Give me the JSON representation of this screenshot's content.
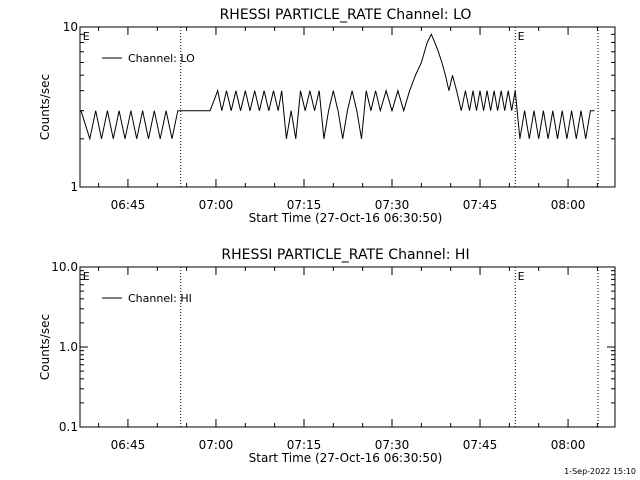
{
  "chart_data": [
    {
      "type": "line",
      "title": "RHESSI PARTICLE_RATE Channel: LO",
      "xlabel": "Start Time (27-Oct-16 06:30:50)",
      "ylabel": "Counts/sec",
      "y_scale": "log",
      "ylim": [
        1,
        10
      ],
      "y_ticks": [
        {
          "value": 1,
          "label": "1"
        },
        {
          "value": 10,
          "label": "10"
        }
      ],
      "x_unit": "minutes of day",
      "xlim": [
        396.83,
        488.0
      ],
      "x_ticks": [
        {
          "value": 405,
          "label": "06:45"
        },
        {
          "value": 420,
          "label": "07:00"
        },
        {
          "value": 435,
          "label": "07:15"
        },
        {
          "value": 450,
          "label": "07:30"
        },
        {
          "value": 465,
          "label": "07:45"
        },
        {
          "value": 480,
          "label": "08:00"
        }
      ],
      "event_lines": [
        414.0,
        471.0,
        485.1
      ],
      "event_markers": [
        {
          "x": 397.3,
          "label": "E"
        },
        {
          "x": 471.4,
          "label": "E"
        }
      ],
      "legend": {
        "position": "top-left"
      },
      "series": [
        {
          "name": "Channel: LO",
          "x": [
            397.0,
            398.5,
            399.5,
            400.5,
            401.5,
            402.5,
            403.5,
            404.5,
            405.5,
            406.5,
            407.5,
            408.5,
            409.5,
            410.5,
            411.5,
            412.5,
            413.5,
            414.2,
            417.0,
            419.0,
            420.3,
            421.0,
            421.8,
            422.6,
            423.4,
            424.2,
            425.0,
            425.8,
            426.6,
            427.4,
            428.2,
            429.0,
            429.8,
            430.6,
            431.2,
            432.0,
            432.8,
            433.6,
            434.4,
            435.2,
            436.0,
            436.8,
            437.6,
            438.4,
            439.2,
            440.0,
            440.8,
            441.6,
            442.4,
            443.2,
            444.0,
            444.8,
            445.6,
            446.4,
            447.2,
            448.0,
            449.0,
            450.0,
            451.0,
            452.0,
            453.0,
            454.0,
            455.0,
            456.0,
            456.7,
            457.3,
            457.9,
            458.5,
            459.1,
            459.7,
            460.3,
            461.0,
            461.8,
            462.5,
            463.2,
            463.8,
            464.4,
            465.0,
            465.6,
            466.2,
            466.8,
            467.4,
            468.0,
            468.6,
            469.2,
            469.8,
            470.4,
            471.0,
            471.8,
            472.6,
            473.4,
            474.2,
            475.0,
            475.8,
            476.6,
            477.4,
            478.2,
            479.0,
            479.8,
            480.6,
            481.4,
            482.2,
            483.0,
            483.8,
            484.5
          ],
          "y": [
            3,
            2,
            3,
            2,
            3,
            2,
            3,
            2,
            3,
            2,
            3,
            2,
            3,
            2,
            3,
            2,
            3,
            3,
            3,
            3,
            4,
            3,
            4,
            3,
            4,
            3,
            4,
            3,
            4,
            3,
            4,
            3,
            4,
            3,
            4,
            2,
            3,
            2,
            4,
            3,
            4,
            3,
            4,
            2,
            3,
            4,
            3,
            2,
            3,
            4,
            3,
            2,
            4,
            3,
            4,
            3,
            4,
            3,
            4,
            3,
            4,
            5,
            6,
            8,
            9,
            8,
            7,
            6,
            5,
            4,
            5,
            4,
            3,
            4,
            3,
            4,
            3,
            4,
            3,
            4,
            3,
            4,
            3,
            4,
            3,
            4,
            3,
            4,
            2,
            3,
            2,
            3,
            2,
            3,
            2,
            3,
            2,
            3,
            2,
            3,
            2,
            3,
            2,
            3,
            3
          ]
        }
      ]
    },
    {
      "type": "line",
      "title": "RHESSI PARTICLE_RATE Channel: HI",
      "xlabel": "Start Time (27-Oct-16 06:30:50)",
      "ylabel": "Counts/sec",
      "y_scale": "log",
      "ylim": [
        0.1,
        10
      ],
      "y_ticks": [
        {
          "value": 0.1,
          "label": "0.1"
        },
        {
          "value": 1,
          "label": "1.0"
        },
        {
          "value": 10,
          "label": "10.0"
        }
      ],
      "x_unit": "minutes of day",
      "xlim": [
        396.83,
        488.0
      ],
      "x_ticks": [
        {
          "value": 405,
          "label": "06:45"
        },
        {
          "value": 420,
          "label": "07:00"
        },
        {
          "value": 435,
          "label": "07:15"
        },
        {
          "value": 450,
          "label": "07:30"
        },
        {
          "value": 465,
          "label": "07:45"
        },
        {
          "value": 480,
          "label": "08:00"
        }
      ],
      "event_lines": [
        414.0,
        471.0,
        485.1
      ],
      "event_markers": [
        {
          "x": 397.3,
          "label": "E"
        },
        {
          "x": 471.4,
          "label": "E"
        }
      ],
      "legend": {
        "position": "top-left"
      },
      "series": [
        {
          "name": "Channel: HI",
          "x": [],
          "y": []
        }
      ]
    }
  ],
  "footer": {
    "timestamp": "1-Sep-2022 15:10"
  }
}
